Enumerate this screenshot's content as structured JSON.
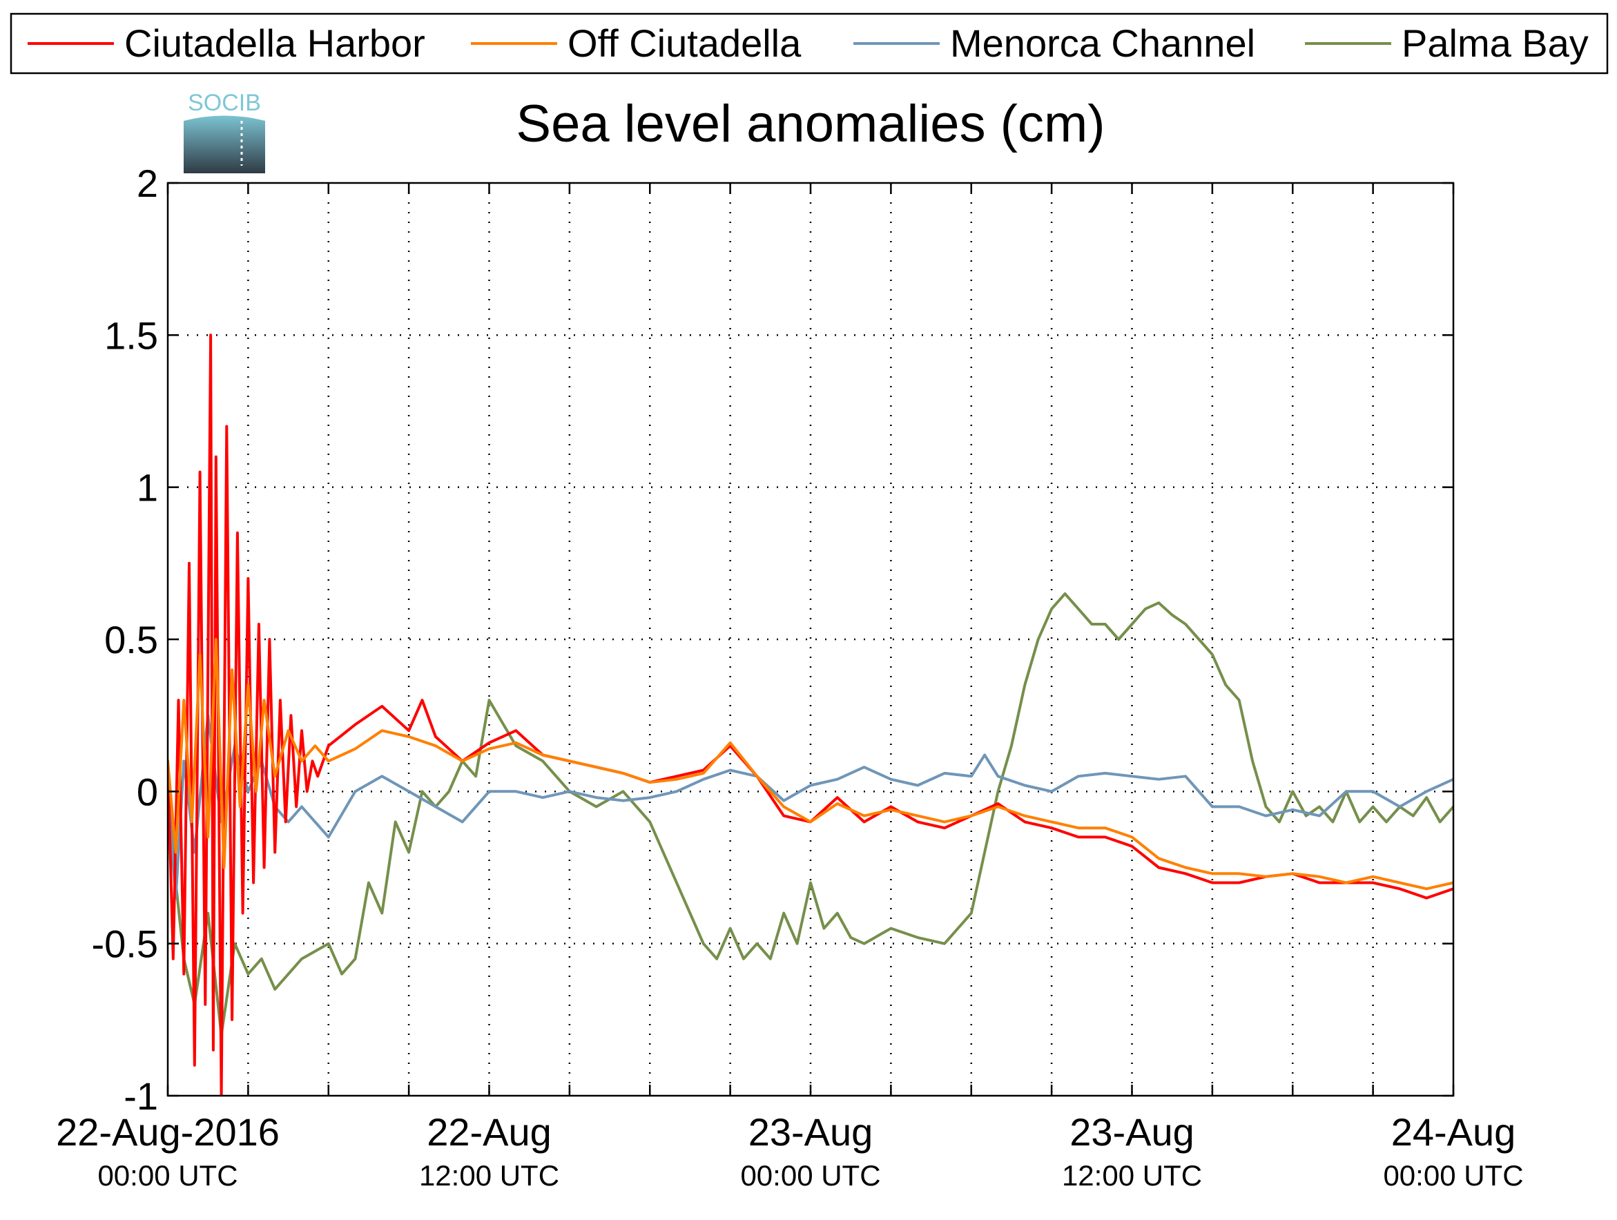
{
  "chart_data": {
    "type": "line",
    "title": "Sea level anomalies (cm)",
    "xlabel": "",
    "ylabel": "",
    "x_unit": "hours since 22-Aug-2016 00:00 UTC",
    "xlim": [
      0,
      48
    ],
    "ylim": [
      -1,
      2
    ],
    "yticks": [
      2,
      1.5,
      1,
      0.5,
      0,
      -0.5,
      -1
    ],
    "ytick_labels": [
      "2",
      "1.5",
      "1",
      "0.5",
      "0",
      "-0.5",
      "-1"
    ],
    "xticks": [
      {
        "x": 0,
        "line1": "22-Aug-2016",
        "line2": "00:00 UTC"
      },
      {
        "x": 12,
        "line1": "22-Aug",
        "line2": "12:00 UTC"
      },
      {
        "x": 24,
        "line1": "23-Aug",
        "line2": "00:00 UTC"
      },
      {
        "x": 36,
        "line1": "23-Aug",
        "line2": "12:00 UTC"
      },
      {
        "x": 48,
        "line1": "24-Aug",
        "line2": "00:00 UTC"
      }
    ],
    "minor_xticks": [
      3,
      6,
      9,
      15,
      18,
      21,
      27,
      30,
      33,
      39,
      42,
      45
    ],
    "grid": true,
    "legend_position": "top",
    "logo_text": "SOCIB",
    "series": [
      {
        "name": "Ciutadella Harbor",
        "color": "#ff0000",
        "x": [
          0,
          0.2,
          0.4,
          0.6,
          0.8,
          1.0,
          1.2,
          1.4,
          1.6,
          1.7,
          1.8,
          2.0,
          2.2,
          2.4,
          2.6,
          2.8,
          3.0,
          3.2,
          3.4,
          3.6,
          3.8,
          4.0,
          4.2,
          4.4,
          4.6,
          4.8,
          5.0,
          5.2,
          5.4,
          5.6,
          6,
          7,
          8,
          9,
          9.5,
          10,
          11,
          12,
          13,
          14,
          15,
          16,
          17,
          18,
          19,
          20,
          21,
          22,
          23,
          24,
          25,
          26,
          27,
          28,
          29,
          30,
          31,
          32,
          33,
          34,
          35,
          36,
          37,
          38,
          39,
          40,
          41,
          42,
          43,
          44,
          45,
          46,
          47,
          48
        ],
        "y": [
          0.1,
          -0.55,
          0.3,
          -0.6,
          0.75,
          -0.9,
          1.05,
          -0.7,
          1.5,
          -0.85,
          1.1,
          -1.0,
          1.2,
          -0.75,
          0.85,
          -0.4,
          0.7,
          -0.3,
          0.55,
          -0.25,
          0.5,
          -0.2,
          0.3,
          -0.1,
          0.25,
          -0.05,
          0.2,
          0.0,
          0.1,
          0.05,
          0.15,
          0.22,
          0.28,
          0.2,
          0.3,
          0.18,
          0.1,
          0.16,
          0.2,
          0.12,
          0.1,
          0.08,
          0.06,
          0.03,
          0.05,
          0.07,
          0.15,
          0.05,
          -0.08,
          -0.1,
          -0.02,
          -0.1,
          -0.05,
          -0.1,
          -0.12,
          -0.08,
          -0.04,
          -0.1,
          -0.12,
          -0.15,
          -0.15,
          -0.18,
          -0.25,
          -0.27,
          -0.3,
          -0.3,
          -0.28,
          -0.27,
          -0.3,
          -0.3,
          -0.3,
          -0.32,
          -0.35,
          -0.32
        ]
      },
      {
        "name": "Off Ciutadella",
        "color": "#ff8000",
        "x": [
          0,
          0.3,
          0.6,
          0.9,
          1.2,
          1.5,
          1.8,
          2.1,
          2.4,
          2.7,
          3.0,
          3.3,
          3.6,
          4.0,
          4.5,
          5.0,
          5.5,
          6,
          7,
          8,
          9,
          10,
          11,
          12,
          13,
          14,
          15,
          16,
          17,
          18,
          19,
          20,
          21,
          22,
          23,
          24,
          25,
          26,
          27,
          28,
          29,
          30,
          31,
          32,
          33,
          34,
          35,
          36,
          37,
          38,
          39,
          40,
          41,
          42,
          43,
          44,
          45,
          46,
          47,
          48
        ],
        "y": [
          0.1,
          -0.2,
          0.3,
          -0.1,
          0.45,
          -0.15,
          0.5,
          -0.25,
          0.4,
          -0.05,
          0.35,
          0.0,
          0.3,
          0.05,
          0.2,
          0.1,
          0.15,
          0.1,
          0.14,
          0.2,
          0.18,
          0.15,
          0.1,
          0.14,
          0.16,
          0.12,
          0.1,
          0.08,
          0.06,
          0.03,
          0.04,
          0.06,
          0.16,
          0.05,
          -0.05,
          -0.1,
          -0.04,
          -0.08,
          -0.06,
          -0.08,
          -0.1,
          -0.08,
          -0.05,
          -0.08,
          -0.1,
          -0.12,
          -0.12,
          -0.15,
          -0.22,
          -0.25,
          -0.27,
          -0.27,
          -0.28,
          -0.27,
          -0.28,
          -0.3,
          -0.28,
          -0.3,
          -0.32,
          -0.3
        ]
      },
      {
        "name": "Menorca Channel",
        "color": "#6f96b8",
        "x": [
          0,
          0.3,
          0.6,
          1,
          1.5,
          2,
          2.5,
          3,
          3.5,
          4,
          4.5,
          5,
          6,
          7,
          8,
          9,
          10,
          11,
          12,
          13,
          14,
          15,
          16,
          17,
          18,
          19,
          20,
          21,
          22,
          23,
          24,
          25,
          26,
          27,
          28,
          29,
          30,
          30.5,
          31,
          32,
          33,
          34,
          35,
          36,
          37,
          38,
          39,
          40,
          41,
          42,
          43,
          44,
          45,
          46,
          47,
          48
        ],
        "y": [
          0.0,
          -0.35,
          0.1,
          -0.2,
          0.25,
          -0.1,
          0.15,
          0.0,
          0.1,
          -0.05,
          -0.1,
          -0.05,
          -0.15,
          0.0,
          0.05,
          0.0,
          -0.05,
          -0.1,
          0.0,
          0.0,
          -0.02,
          0.0,
          -0.02,
          -0.03,
          -0.02,
          0.0,
          0.04,
          0.07,
          0.05,
          -0.03,
          0.02,
          0.04,
          0.08,
          0.04,
          0.02,
          0.06,
          0.05,
          0.12,
          0.05,
          0.02,
          0.0,
          0.05,
          0.06,
          0.05,
          0.04,
          0.05,
          -0.05,
          -0.05,
          -0.08,
          -0.06,
          -0.08,
          0.0,
          0.0,
          -0.05,
          0.0,
          0.04
        ]
      },
      {
        "name": "Palma Bay",
        "color": "#768f4b",
        "x": [
          0,
          0.3,
          0.6,
          1,
          1.5,
          2,
          2.5,
          3,
          3.5,
          4,
          5,
          6,
          6.5,
          7,
          7.5,
          8,
          8.5,
          9,
          9.5,
          10,
          10.5,
          11,
          11.5,
          12,
          13,
          14,
          15,
          16,
          17,
          18,
          18.5,
          19,
          19.5,
          20,
          20.5,
          21,
          21.5,
          22,
          22.5,
          23,
          23.5,
          24,
          24.5,
          25,
          25.5,
          26,
          27,
          28,
          29,
          30,
          30.5,
          31,
          31.5,
          32,
          32.5,
          33,
          33.5,
          34,
          34.5,
          35,
          35.5,
          36,
          36.5,
          37,
          37.5,
          38,
          38.5,
          39,
          39.5,
          40,
          40.5,
          41,
          41.5,
          42,
          42.5,
          43,
          43.5,
          44,
          44.5,
          45,
          45.5,
          46,
          46.5,
          47,
          47.5,
          48
        ],
        "y": [
          0.0,
          -0.3,
          -0.55,
          -0.7,
          -0.4,
          -0.8,
          -0.5,
          -0.6,
          -0.55,
          -0.65,
          -0.55,
          -0.5,
          -0.6,
          -0.55,
          -0.3,
          -0.4,
          -0.1,
          -0.2,
          0.0,
          -0.05,
          0.0,
          0.1,
          0.05,
          0.3,
          0.15,
          0.1,
          0.0,
          -0.05,
          0.0,
          -0.1,
          -0.2,
          -0.3,
          -0.4,
          -0.5,
          -0.55,
          -0.45,
          -0.55,
          -0.5,
          -0.55,
          -0.4,
          -0.5,
          -0.3,
          -0.45,
          -0.4,
          -0.48,
          -0.5,
          -0.45,
          -0.48,
          -0.5,
          -0.4,
          -0.2,
          0.0,
          0.15,
          0.35,
          0.5,
          0.6,
          0.65,
          0.6,
          0.55,
          0.55,
          0.5,
          0.55,
          0.6,
          0.62,
          0.58,
          0.55,
          0.5,
          0.45,
          0.35,
          0.3,
          0.1,
          -0.05,
          -0.1,
          0.0,
          -0.08,
          -0.05,
          -0.1,
          0.0,
          -0.1,
          -0.05,
          -0.1,
          -0.05,
          -0.08,
          -0.02,
          -0.1,
          -0.05
        ]
      }
    ]
  }
}
